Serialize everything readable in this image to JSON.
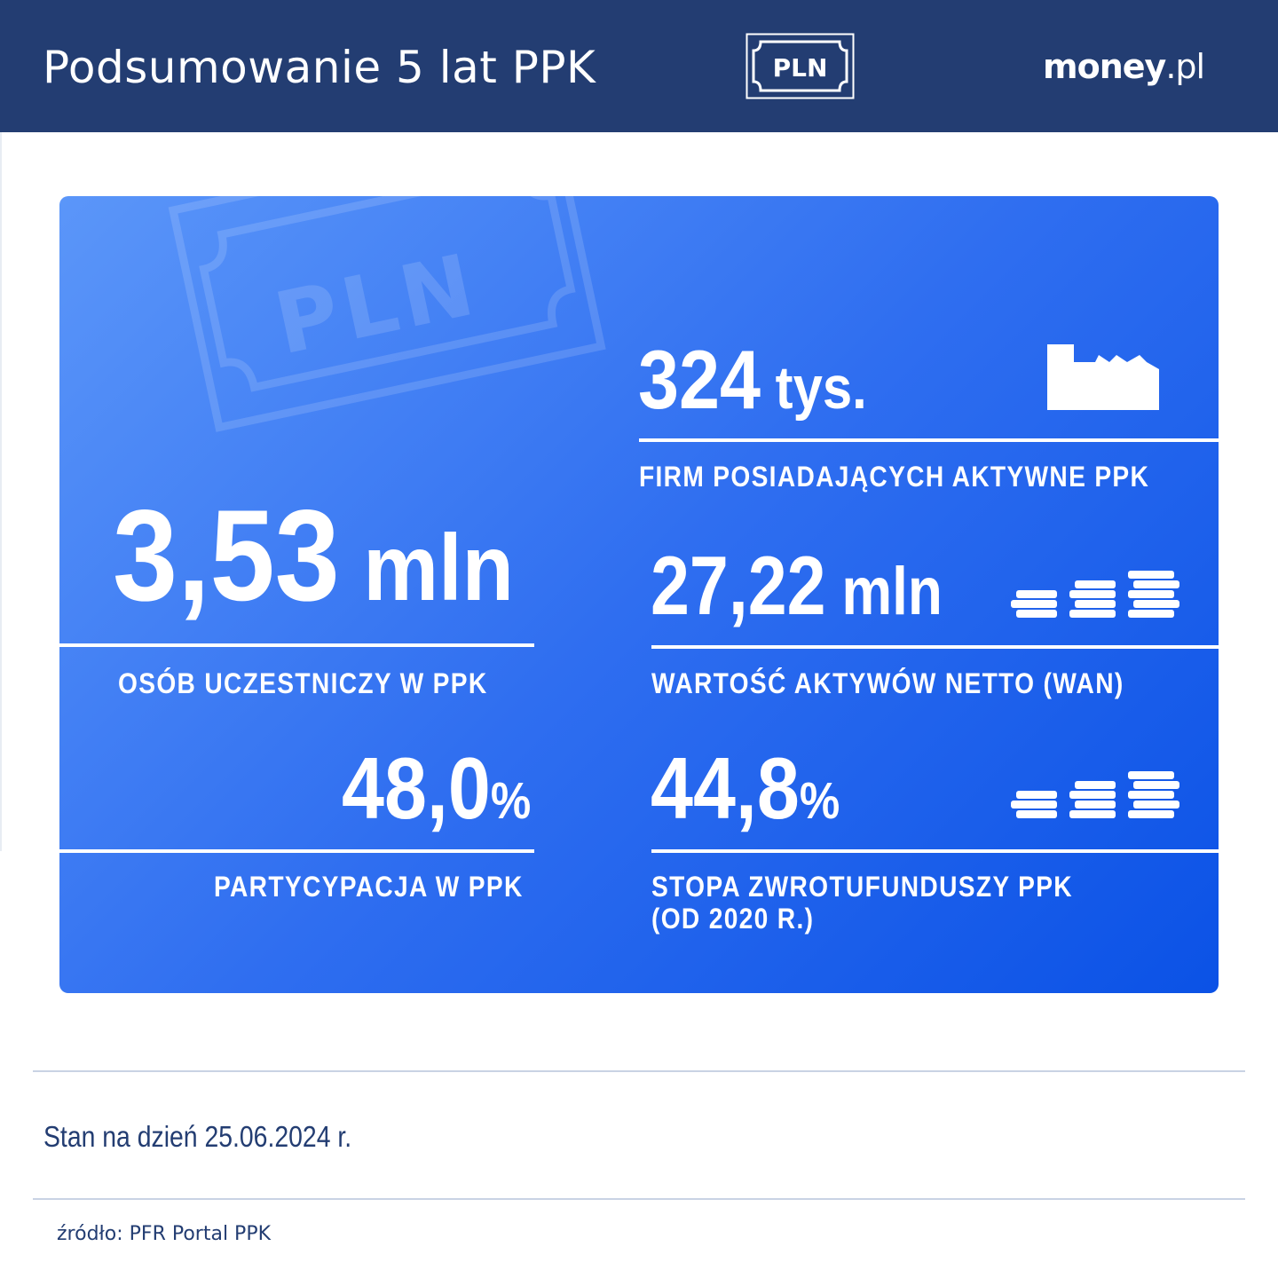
{
  "header": {
    "title": "Podsumowanie 5 lat PPK",
    "badge_text": "PLN",
    "brand_bold": "money",
    "brand_light": ".pl"
  },
  "card": {
    "watermark_text": "PLN",
    "stats": {
      "participants": {
        "number": "3,53",
        "unit": " mln",
        "label": "OSÓB UCZESTNICZY W PPK"
      },
      "firms": {
        "number": "324",
        "unit": " tys.",
        "label": "FIRM POSIADAJĄCYCH AKTYWNE PPK",
        "icon": "factory-icon"
      },
      "assets": {
        "number": "27,22",
        "unit": " mln",
        "label": "WARTOŚĆ AKTYWÓW NETTO (WAN)",
        "icon": "coin-stacks-icon"
      },
      "participation": {
        "number": "48,0",
        "unit": "%",
        "label": "PARTYCYPACJA W PPK"
      },
      "return_rate": {
        "number": "44,8",
        "unit": "%",
        "label_line1": "STOPA ZWROTUFUNDUSZY PPK",
        "label_line2": "(OD 2020 R.)",
        "icon": "coin-stacks-icon"
      }
    }
  },
  "footer": {
    "date": "Stan na dzień 25.06.2024 r.",
    "source": "źródło: PFR Portal PPK"
  },
  "colors": {
    "header_bg": "#233d72",
    "card_gradient_start": "#5b96f9",
    "card_gradient_end": "#0b52e6",
    "text_dark": "#233d72"
  }
}
